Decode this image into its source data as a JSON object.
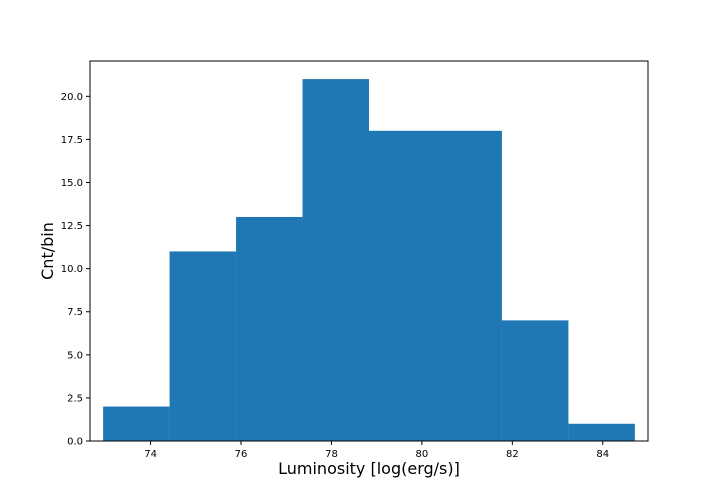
{
  "chart_data": {
    "type": "bar",
    "title": "",
    "xlabel": "Luminosity [log(erg/s)]",
    "ylabel": "Cnt/bin",
    "bins": [
      {
        "x0": 72.95,
        "x1": 74.42,
        "count": 2
      },
      {
        "x0": 74.42,
        "x1": 75.89,
        "count": 11
      },
      {
        "x0": 75.89,
        "x1": 77.36,
        "count": 13
      },
      {
        "x0": 77.36,
        "x1": 78.83,
        "count": 21
      },
      {
        "x0": 78.83,
        "x1": 80.3,
        "count": 18
      },
      {
        "x0": 80.3,
        "x1": 81.77,
        "count": 18
      },
      {
        "x0": 81.77,
        "x1": 83.24,
        "count": 7
      },
      {
        "x0": 83.24,
        "x1": 84.71,
        "count": 1
      }
    ],
    "xlim": [
      72.66,
      85.0
    ],
    "ylim": [
      0,
      22.05
    ],
    "xticks": [
      74,
      76,
      78,
      80,
      82,
      84
    ],
    "xtick_labels": [
      "74",
      "76",
      "78",
      "80",
      "82",
      "84"
    ],
    "yticks": [
      0,
      2.5,
      5,
      7.5,
      10,
      12.5,
      15,
      17.5,
      20
    ],
    "ytick_labels": [
      "0.0",
      "2.5",
      "5.0",
      "7.5",
      "10.0",
      "12.5",
      "15.0",
      "17.5",
      "20.0"
    ],
    "bar_color": "#1f77b4",
    "grid": false,
    "legend": "none"
  }
}
